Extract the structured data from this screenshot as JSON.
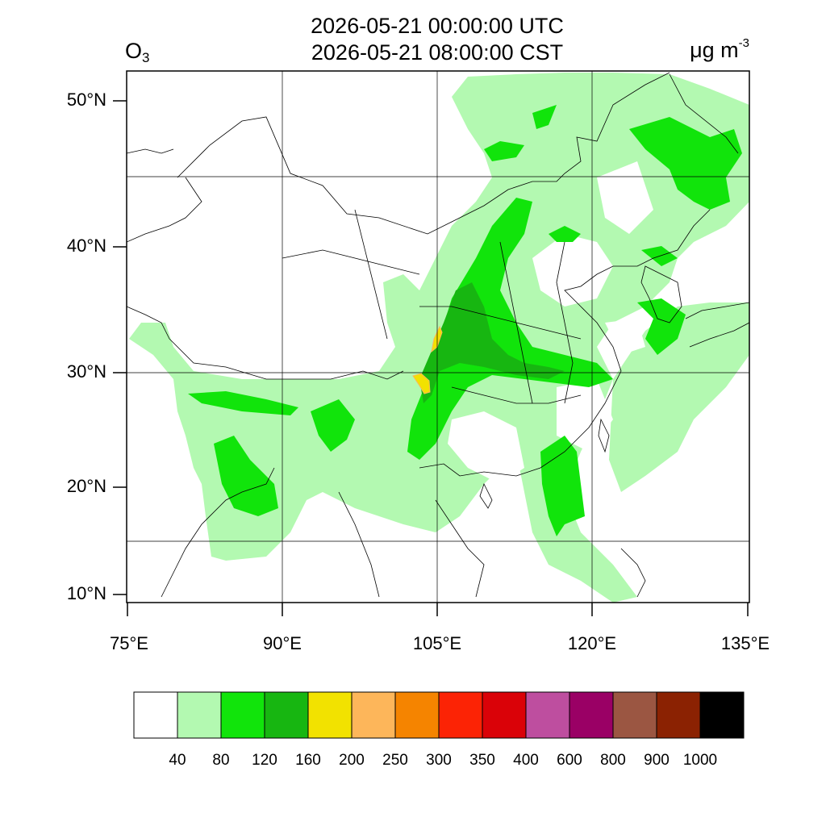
{
  "title": {
    "utc": "2026-05-21 00:00:00 UTC",
    "cst": "2026-05-21 08:00:00 CST"
  },
  "variable": {
    "base": "O",
    "sub": "3"
  },
  "units": {
    "text": "μg m",
    "exp": "-3"
  },
  "lat_labels": [
    "50°N",
    "40°N",
    "30°N",
    "20°N",
    "10°N"
  ],
  "lon_labels": [
    "75°E",
    "90°E",
    "105°E",
    "120°E",
    "135°E"
  ],
  "colorbar": {
    "colors": [
      "#ffffff",
      "#b3f9b1",
      "#11e40b",
      "#17b611",
      "#f2e200",
      "#fdb65a",
      "#f58400",
      "#fc2305",
      "#da0208",
      "#be4e9f",
      "#9a0065",
      "#9b5642",
      "#8b2202",
      "#000000"
    ],
    "labels": [
      "40",
      "80",
      "120",
      "160",
      "200",
      "250",
      "300",
      "350",
      "400",
      "600",
      "800",
      "900",
      "1000"
    ]
  },
  "ozone_levels": {
    "light_green": "40-80",
    "green": "80-120",
    "dark_green": "120-160",
    "yellow": "160-200"
  }
}
